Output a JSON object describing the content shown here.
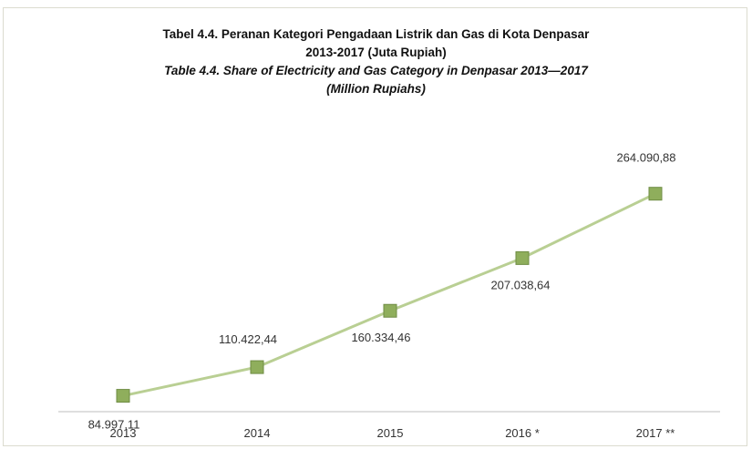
{
  "chart_data": {
    "type": "line",
    "title": "Tabel 4.4. Peranan Kategori Pengadaan Listrik dan Gas di Kota Denpasar",
    "title_line2": "2013-2017 (Juta Rupiah)",
    "subtitle": "Table 4.4.  Share of Electricity and Gas Category in Denpasar 2013—2017",
    "subtitle_line2": "(Million Rupiahs)",
    "categories": [
      "2013",
      "2014",
      "2015",
      "2016 *",
      "2017 **"
    ],
    "values": [
      84997.11,
      110422.44,
      160334.46,
      207038.64,
      264090.88
    ],
    "data_labels": [
      "84.997,11",
      "110.422,44",
      "160.334,46",
      "207.038,64",
      "264.090,88"
    ],
    "xlabel": "",
    "ylabel": "",
    "ylim": [
      0,
      300000
    ],
    "grid": false,
    "legend": "none",
    "colors": {
      "line": "#b9cf93",
      "marker_fill": "#8fae5c",
      "marker_border": "#6f8c44",
      "axis": "#bfbfbf"
    }
  }
}
